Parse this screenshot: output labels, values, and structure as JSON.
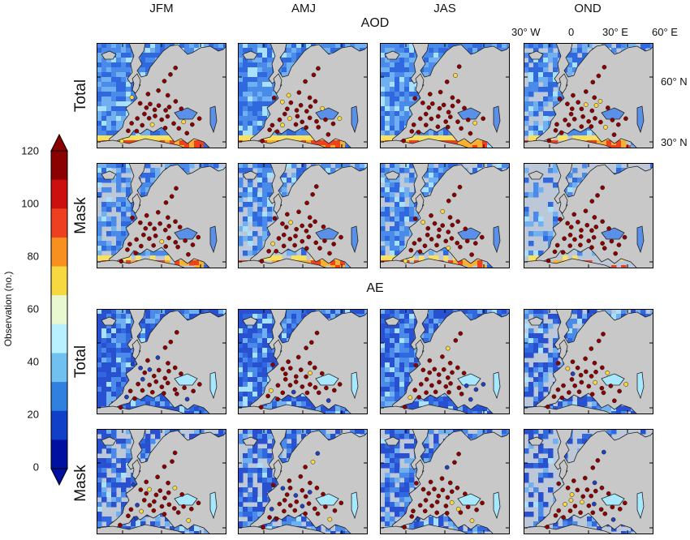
{
  "seasons": [
    "JFM",
    "AMJ",
    "JAS",
    "OND"
  ],
  "groups": [
    {
      "title": "AOD",
      "rows": [
        "Total",
        "Mask"
      ]
    },
    {
      "title": "AE",
      "rows": [
        "Total",
        "Mask"
      ]
    }
  ],
  "lon_labels": [
    "30° W",
    "0",
    "30° E",
    "60° E"
  ],
  "lat_labels": [
    "60° N",
    "30° N"
  ],
  "colorbar": {
    "title": "Observation (no.)",
    "ticks": [
      "120",
      "100",
      "80",
      "60",
      "40",
      "20",
      "0"
    ],
    "colors": [
      "#8b0000",
      "#cc1010",
      "#ee4020",
      "#f89020",
      "#f8d840",
      "#e8f8d0",
      "#b8f0ff",
      "#70c0f0",
      "#3080e0",
      "#1040c8",
      "#0010a0"
    ]
  },
  "colors": {
    "land": "#c8c8c8",
    "ocean_low": "#2a55d6",
    "ocean_mid": "#5aa0ee",
    "ocean_high": "#f0d040",
    "station": "#8b0000",
    "coast": "#222222"
  }
}
